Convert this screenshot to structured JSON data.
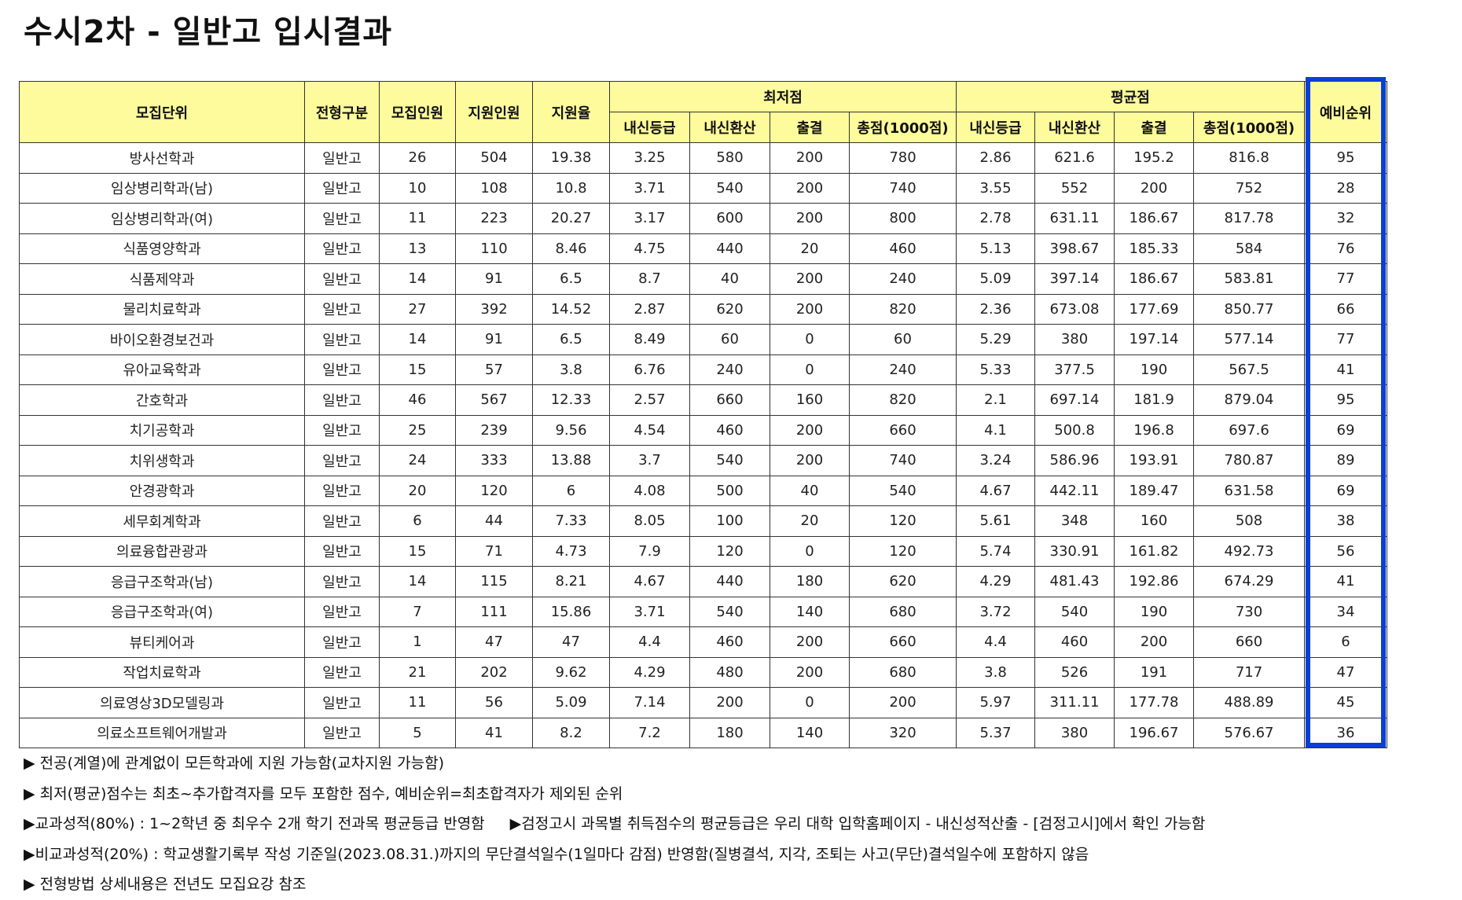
{
  "title": "수시2차 - 일반고 입시결과",
  "table": {
    "headers": {
      "unit": "모집단위",
      "type": "전형구분",
      "quota": "모집인원",
      "applicants": "지원인원",
      "rate": "지원율",
      "min_group": "최저점",
      "avg_group": "평균점",
      "reserve": "예비순위",
      "sub": [
        "내신등급",
        "내신환산",
        "출결",
        "총점(1000점)"
      ]
    },
    "rows": [
      [
        "방사선학과",
        "일반고",
        "26",
        "504",
        "19.38",
        "3.25",
        "580",
        "200",
        "780",
        "2.86",
        "621.6",
        "195.2",
        "816.8",
        "95"
      ],
      [
        "임상병리학과(남)",
        "일반고",
        "10",
        "108",
        "10.8",
        "3.71",
        "540",
        "200",
        "740",
        "3.55",
        "552",
        "200",
        "752",
        "28"
      ],
      [
        "임상병리학과(여)",
        "일반고",
        "11",
        "223",
        "20.27",
        "3.17",
        "600",
        "200",
        "800",
        "2.78",
        "631.11",
        "186.67",
        "817.78",
        "32"
      ],
      [
        "식품영양학과",
        "일반고",
        "13",
        "110",
        "8.46",
        "4.75",
        "440",
        "20",
        "460",
        "5.13",
        "398.67",
        "185.33",
        "584",
        "76"
      ],
      [
        "식품제약과",
        "일반고",
        "14",
        "91",
        "6.5",
        "8.7",
        "40",
        "200",
        "240",
        "5.09",
        "397.14",
        "186.67",
        "583.81",
        "77"
      ],
      [
        "물리치료학과",
        "일반고",
        "27",
        "392",
        "14.52",
        "2.87",
        "620",
        "200",
        "820",
        "2.36",
        "673.08",
        "177.69",
        "850.77",
        "66"
      ],
      [
        "바이오환경보건과",
        "일반고",
        "14",
        "91",
        "6.5",
        "8.49",
        "60",
        "0",
        "60",
        "5.29",
        "380",
        "197.14",
        "577.14",
        "77"
      ],
      [
        "유아교육학과",
        "일반고",
        "15",
        "57",
        "3.8",
        "6.76",
        "240",
        "0",
        "240",
        "5.33",
        "377.5",
        "190",
        "567.5",
        "41"
      ],
      [
        "간호학과",
        "일반고",
        "46",
        "567",
        "12.33",
        "2.57",
        "660",
        "160",
        "820",
        "2.1",
        "697.14",
        "181.9",
        "879.04",
        "95"
      ],
      [
        "치기공학과",
        "일반고",
        "25",
        "239",
        "9.56",
        "4.54",
        "460",
        "200",
        "660",
        "4.1",
        "500.8",
        "196.8",
        "697.6",
        "69"
      ],
      [
        "치위생학과",
        "일반고",
        "24",
        "333",
        "13.88",
        "3.7",
        "540",
        "200",
        "740",
        "3.24",
        "586.96",
        "193.91",
        "780.87",
        "89"
      ],
      [
        "안경광학과",
        "일반고",
        "20",
        "120",
        "6",
        "4.08",
        "500",
        "40",
        "540",
        "4.67",
        "442.11",
        "189.47",
        "631.58",
        "69"
      ],
      [
        "세무회계학과",
        "일반고",
        "6",
        "44",
        "7.33",
        "8.05",
        "100",
        "20",
        "120",
        "5.61",
        "348",
        "160",
        "508",
        "38"
      ],
      [
        "의료융합관광과",
        "일반고",
        "15",
        "71",
        "4.73",
        "7.9",
        "120",
        "0",
        "120",
        "5.74",
        "330.91",
        "161.82",
        "492.73",
        "56"
      ],
      [
        "응급구조학과(남)",
        "일반고",
        "14",
        "115",
        "8.21",
        "4.67",
        "440",
        "180",
        "620",
        "4.29",
        "481.43",
        "192.86",
        "674.29",
        "41"
      ],
      [
        "응급구조학과(여)",
        "일반고",
        "7",
        "111",
        "15.86",
        "3.71",
        "540",
        "140",
        "680",
        "3.72",
        "540",
        "190",
        "730",
        "34"
      ],
      [
        "뷰티케어과",
        "일반고",
        "1",
        "47",
        "47",
        "4.4",
        "460",
        "200",
        "660",
        "4.4",
        "460",
        "200",
        "660",
        "6"
      ],
      [
        "작업치료학과",
        "일반고",
        "21",
        "202",
        "9.62",
        "4.29",
        "480",
        "200",
        "680",
        "3.8",
        "526",
        "191",
        "717",
        "47"
      ],
      [
        "의료영상3D모델링과",
        "일반고",
        "11",
        "56",
        "5.09",
        "7.14",
        "200",
        "0",
        "200",
        "5.97",
        "311.11",
        "177.78",
        "488.89",
        "45"
      ],
      [
        "의료소프트웨어개발과",
        "일반고",
        "5",
        "41",
        "8.2",
        "7.2",
        "180",
        "140",
        "320",
        "5.37",
        "380",
        "196.67",
        "576.67",
        "36"
      ]
    ]
  },
  "notes": [
    "▶ 전공(계열)에 관계없이 모든학과에 지원 가능함(교차지원 가능함)",
    "▶ 최저(평균)점수는 최초~추가합격자를 모두 포함한 점수, 예비순위=최초합격자가 제외된 순위",
    "▶교과성적(80%) : 1~2학년 중 최우수 2개 학기 전과목 평균등급 반영함",
    "▶검정고시 과목별 취득점수의 평균등급은 우리 대학 입학홈페이지 - 내신성적산출 - [검정고시]에서 확인 가능함",
    "▶비교과성적(20%) : 학교생활기록부 작성 기준일(2023.08.31.)까지의 무단결석일수(1일마다 감점) 반영함(질병결석, 지각, 조퇴는 사고(무단)결석일수에 포함하지 않음",
    "▶ 전형방법 상세내용은 전년도 모집요강 참조"
  ],
  "colors": {
    "header_bg": "#fdfb9b",
    "highlight_border": "#0a3fd6"
  }
}
